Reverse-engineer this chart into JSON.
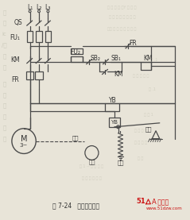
{
  "bg_color": "#e8e4d8",
  "line_color": "#4a4a4a",
  "text_color": "#333333",
  "figsize": [
    2.39,
    2.77
  ],
  "dpi": 100,
  "title": "图 7-24   电磁抱闸制动",
  "watermark_color": "#bbbbaa",
  "logo_color": "#cc1111",
  "logo_text": "51A 电子网",
  "logo_url": "www.51dzw.com"
}
